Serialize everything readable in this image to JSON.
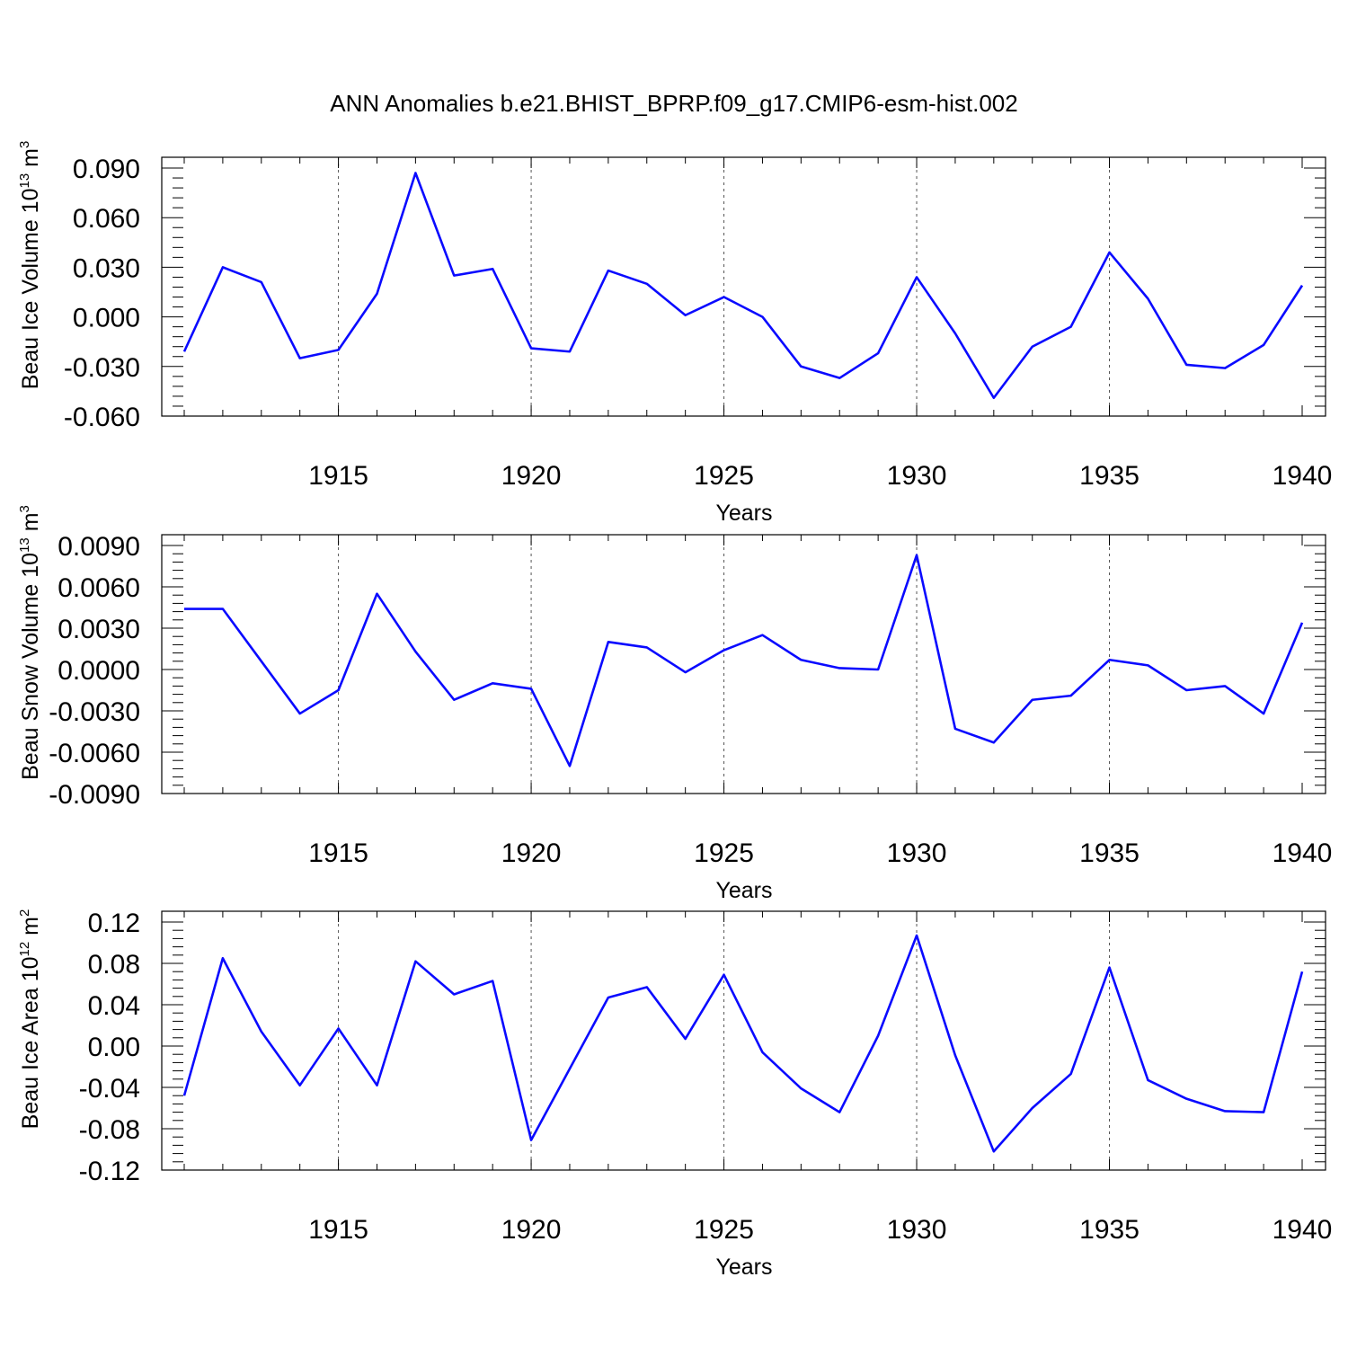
{
  "figure": {
    "title": "ANN Anomalies b.e21.BHIST_BPRP.f09_g17.CMIP6-esm-hist.002"
  },
  "colors": {
    "line": "#0a0aff",
    "grid": "#555555",
    "axis": "#000000"
  },
  "chart_data": [
    {
      "type": "line",
      "ylabel_main": "Beau Ice Volume 10",
      "ylabel_exp": "13",
      "ylabel_unit": " m",
      "ylabel_unit_exp": "3",
      "xlabel": "Years",
      "xlim": [
        1911,
        1940
      ],
      "ylim": [
        -0.06,
        0.09
      ],
      "yticks": [
        -0.06,
        -0.03,
        0.0,
        0.03,
        0.06,
        0.09
      ],
      "ytick_labels": [
        "-0.060",
        "-0.030",
        "0.000",
        "0.030",
        "0.060",
        "0.090"
      ],
      "xticks": [
        1915,
        1920,
        1925,
        1930,
        1935,
        1940
      ],
      "xtick_labels": [
        "1915",
        "1920",
        "1925",
        "1930",
        "1935",
        "1940"
      ],
      "grid_x": true,
      "x": [
        1911,
        1912,
        1913,
        1914,
        1915,
        1916,
        1917,
        1918,
        1919,
        1920,
        1921,
        1922,
        1923,
        1924,
        1925,
        1926,
        1927,
        1928,
        1929,
        1930,
        1931,
        1932,
        1933,
        1934,
        1935,
        1936,
        1937,
        1938,
        1939,
        1940
      ],
      "series": [
        {
          "values": [
            -0.021,
            0.03,
            0.021,
            -0.025,
            -0.02,
            0.014,
            0.087,
            0.025,
            0.029,
            -0.019,
            -0.021,
            0.028,
            0.02,
            0.001,
            0.012,
            0.0,
            -0.03,
            -0.037,
            -0.022,
            0.024,
            -0.01,
            -0.049,
            -0.018,
            -0.006,
            0.039,
            0.011,
            -0.029,
            -0.031,
            -0.017,
            0.019
          ]
        }
      ]
    },
    {
      "type": "line",
      "ylabel_main": "Beau Snow Volume 10",
      "ylabel_exp": "13",
      "ylabel_unit": " m",
      "ylabel_unit_exp": "3",
      "xlabel": "Years",
      "xlim": [
        1911,
        1940
      ],
      "ylim": [
        -0.009,
        0.009
      ],
      "yticks": [
        -0.009,
        -0.006,
        -0.003,
        0.0,
        0.003,
        0.006,
        0.009
      ],
      "ytick_labels": [
        "-0.0090",
        "-0.0060",
        "-0.0030",
        "0.0000",
        "0.0030",
        "0.0060",
        "0.0090"
      ],
      "xticks": [
        1915,
        1920,
        1925,
        1930,
        1935,
        1940
      ],
      "xtick_labels": [
        "1915",
        "1920",
        "1925",
        "1930",
        "1935",
        "1940"
      ],
      "grid_x": true,
      "x": [
        1911,
        1912,
        1913,
        1914,
        1915,
        1916,
        1917,
        1918,
        1919,
        1920,
        1921,
        1922,
        1923,
        1924,
        1925,
        1926,
        1927,
        1928,
        1929,
        1930,
        1931,
        1932,
        1933,
        1934,
        1935,
        1936,
        1937,
        1938,
        1939,
        1940
      ],
      "series": [
        {
          "values": [
            0.0044,
            0.0044,
            0.0006,
            -0.0032,
            -0.0015,
            0.0055,
            0.0013,
            -0.0022,
            -0.001,
            -0.0014,
            -0.007,
            0.002,
            0.0016,
            -0.0002,
            0.0014,
            0.0025,
            0.0007,
            0.0001,
            0.0,
            0.0083,
            -0.0043,
            -0.0053,
            -0.0022,
            -0.0019,
            0.0007,
            0.0003,
            -0.0015,
            -0.0012,
            -0.0032,
            0.0034
          ]
        }
      ]
    },
    {
      "type": "line",
      "ylabel_main": "Beau Ice Area 10",
      "ylabel_exp": "12",
      "ylabel_unit": " m",
      "ylabel_unit_exp": "2",
      "xlabel": "Years",
      "xlim": [
        1911,
        1940
      ],
      "ylim": [
        -0.12,
        0.12
      ],
      "yticks": [
        -0.12,
        -0.08,
        -0.04,
        0.0,
        0.04,
        0.08,
        0.12
      ],
      "ytick_labels": [
        "-0.12",
        "-0.08",
        "-0.04",
        "0.00",
        "0.04",
        "0.08",
        "0.12"
      ],
      "xticks": [
        1915,
        1920,
        1925,
        1930,
        1935,
        1940
      ],
      "xtick_labels": [
        "1915",
        "1920",
        "1925",
        "1930",
        "1935",
        "1940"
      ],
      "grid_x": true,
      "x": [
        1911,
        1912,
        1913,
        1914,
        1915,
        1916,
        1917,
        1918,
        1919,
        1920,
        1921,
        1922,
        1923,
        1924,
        1925,
        1926,
        1927,
        1928,
        1929,
        1930,
        1931,
        1932,
        1933,
        1934,
        1935,
        1936,
        1937,
        1938,
        1939,
        1940
      ],
      "series": [
        {
          "values": [
            -0.048,
            0.085,
            0.014,
            -0.038,
            0.017,
            -0.038,
            0.082,
            0.05,
            0.063,
            -0.091,
            -0.022,
            0.047,
            0.057,
            0.007,
            0.069,
            -0.006,
            -0.041,
            -0.064,
            0.01,
            0.107,
            -0.009,
            -0.102,
            -0.06,
            -0.027,
            0.076,
            -0.033,
            -0.051,
            -0.063,
            -0.064,
            0.072
          ]
        }
      ]
    }
  ]
}
